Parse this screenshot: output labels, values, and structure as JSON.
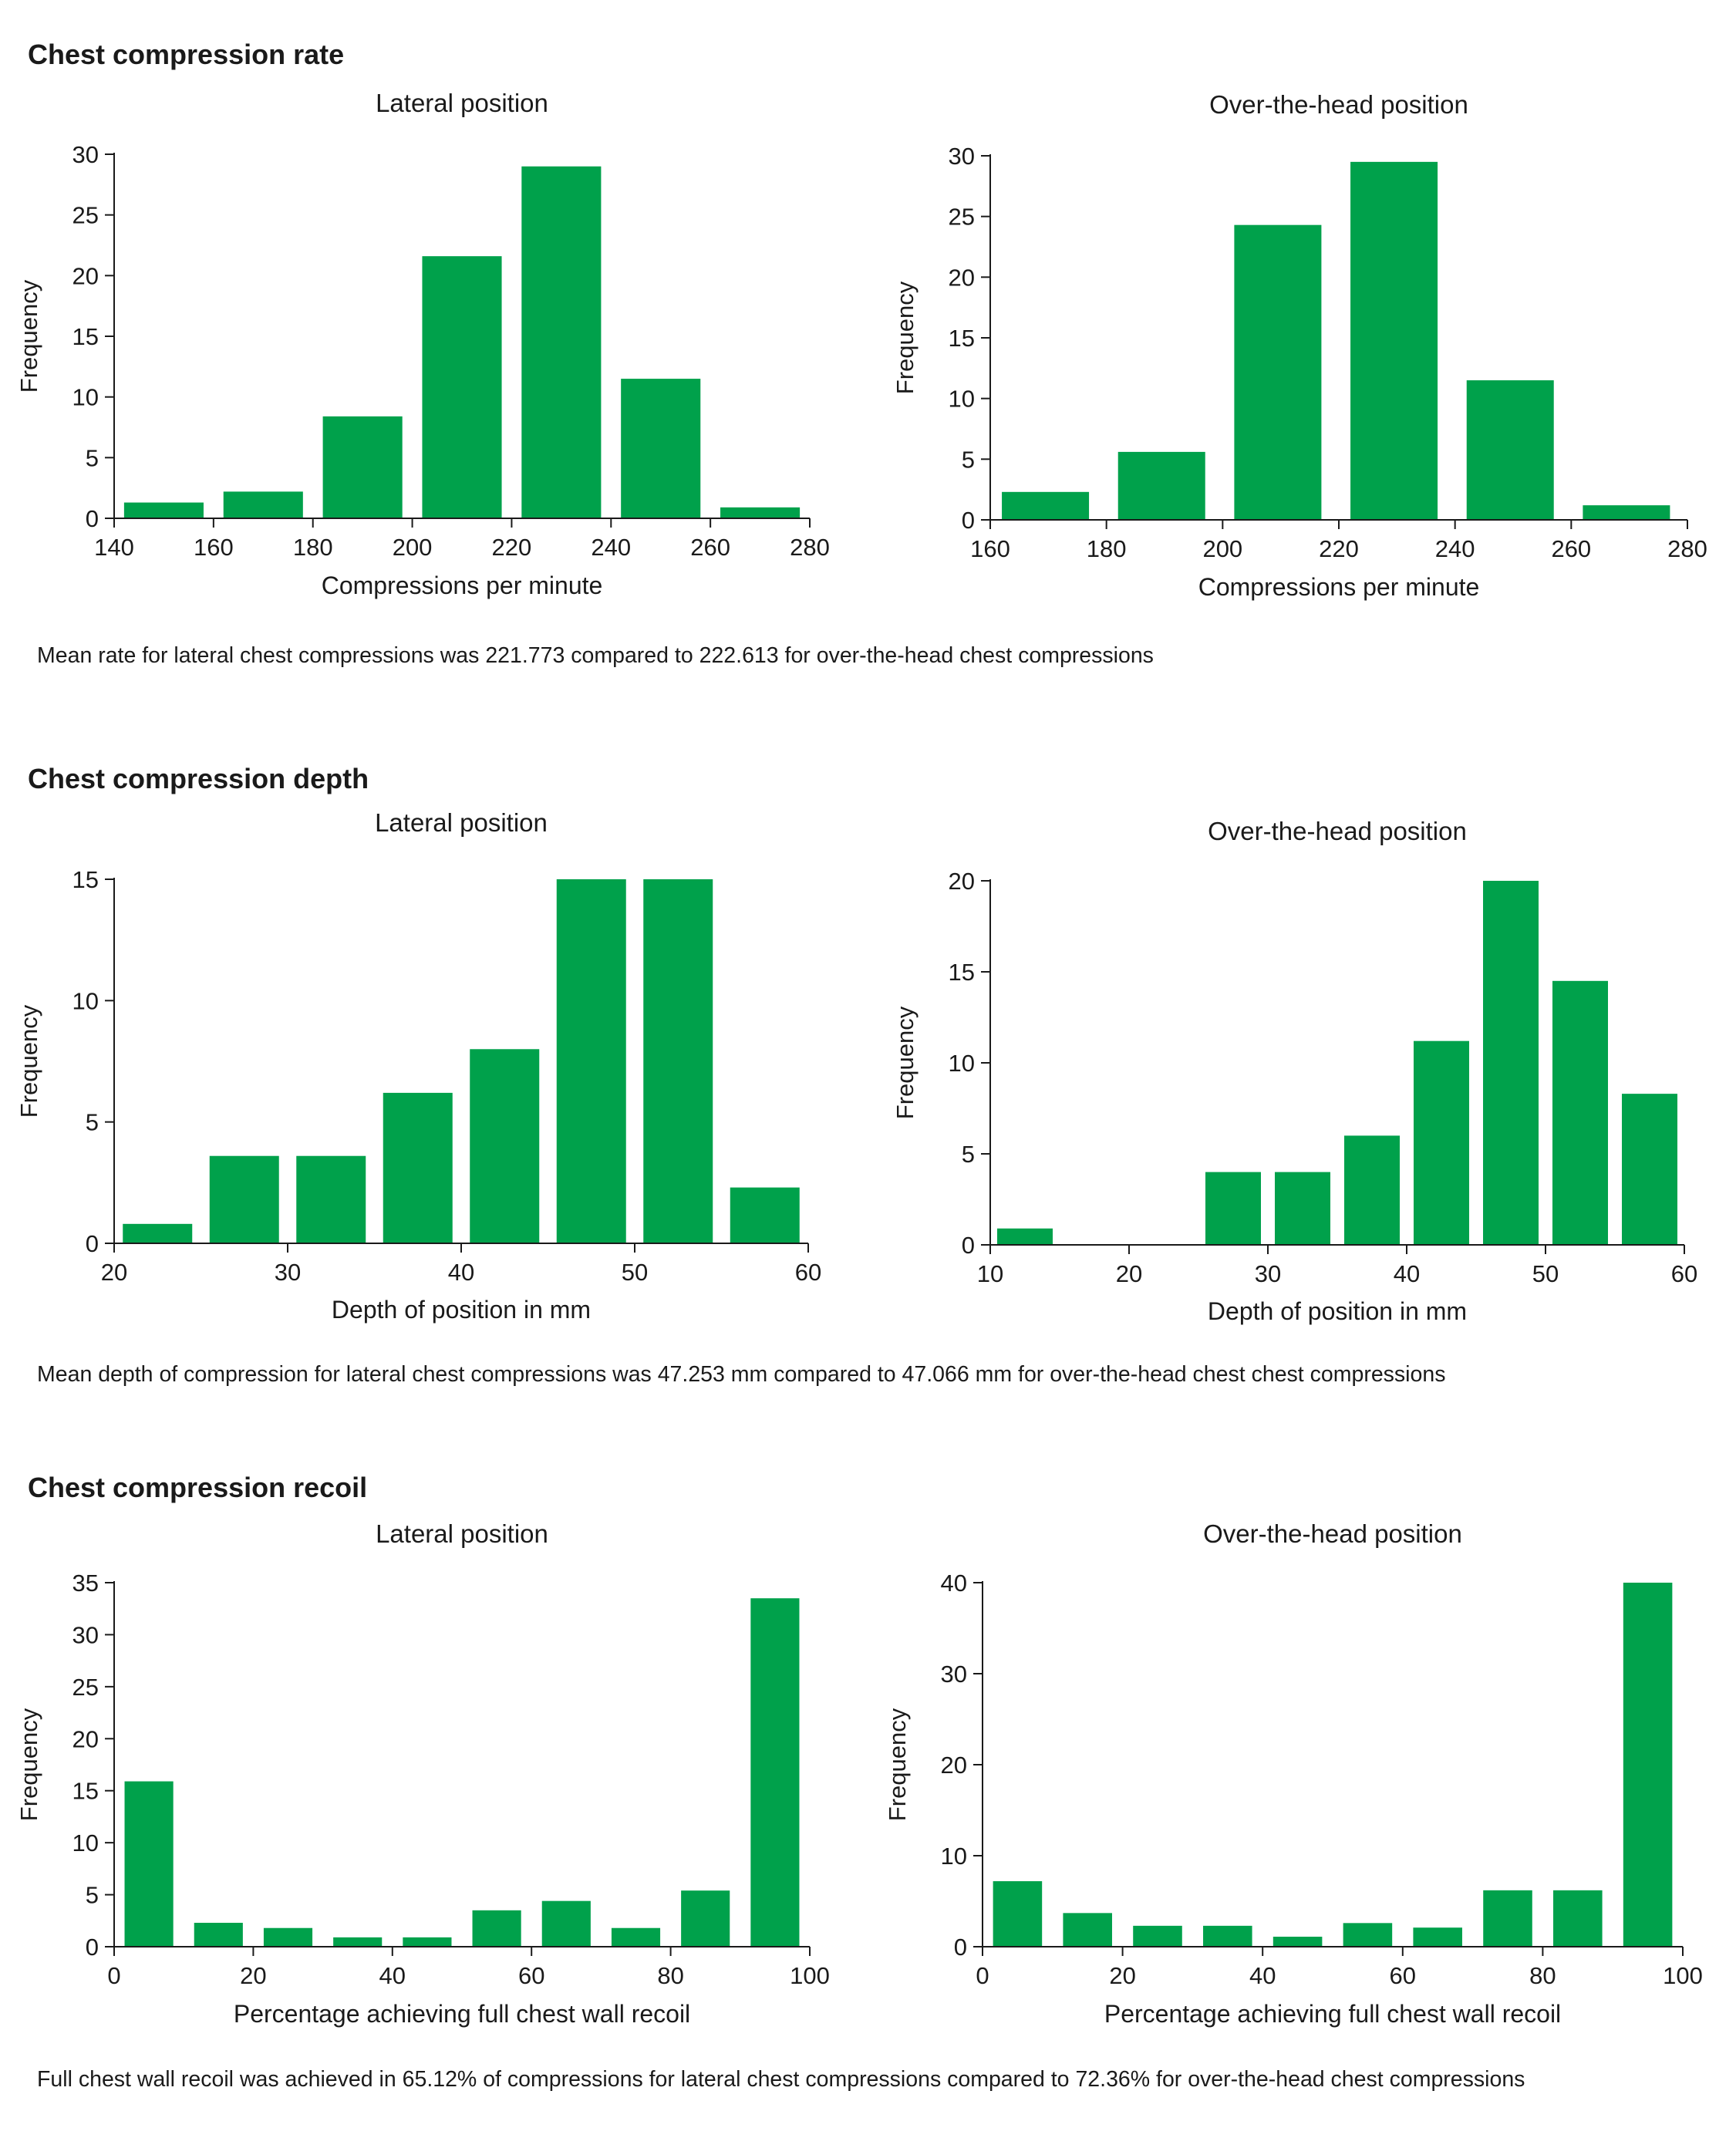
{
  "sections": [
    {
      "title": "Chest compression rate",
      "caption": "Mean rate for lateral chest compressions was 221.773 compared to 222.613 for over-the-head chest compressions"
    },
    {
      "title": "Chest compression depth",
      "caption": "Mean depth of compression for lateral chest compressions was 47.253 mm compared to 47.066 mm for over-the-head chest chest compressions"
    },
    {
      "title": "Chest compression recoil",
      "caption": "Full chest wall recoil was achieved in 65.12% of compressions for lateral chest compressions compared to 72.36% for over-the-head chest compressions"
    }
  ],
  "colors": {
    "bar": "#00a14b",
    "text": "#1a1a1a"
  },
  "chart_data": [
    {
      "type": "bar",
      "title": "Lateral position",
      "xlabel": "Compressions per minute",
      "ylabel": "Frequency",
      "xlim": [
        140,
        280
      ],
      "ylim": [
        0,
        30
      ],
      "xticks": [
        140,
        160,
        180,
        200,
        220,
        240,
        260,
        280
      ],
      "yticks": [
        0,
        5,
        10,
        15,
        20,
        25,
        30
      ],
      "bins": [
        [
          142,
          158
        ],
        [
          162,
          178
        ],
        [
          182,
          198
        ],
        [
          202,
          218
        ],
        [
          222,
          238
        ],
        [
          242,
          258
        ],
        [
          262,
          278
        ]
      ],
      "values": [
        1.3,
        2.2,
        8.4,
        21.6,
        29,
        11.5,
        0.9
      ]
    },
    {
      "type": "bar",
      "title": "Over-the-head position",
      "xlabel": "Compressions per minute",
      "ylabel": "Frequency",
      "xlim": [
        160,
        280
      ],
      "ylim": [
        0,
        30
      ],
      "xticks": [
        160,
        180,
        200,
        220,
        240,
        260,
        280
      ],
      "yticks": [
        0,
        5,
        10,
        15,
        20,
        25,
        30
      ],
      "bins": [
        [
          162,
          177
        ],
        [
          182,
          197
        ],
        [
          202,
          217
        ],
        [
          222,
          237
        ],
        [
          242,
          257
        ],
        [
          262,
          277
        ]
      ],
      "values": [
        2.3,
        5.6,
        24.3,
        29.5,
        11.5,
        1.2
      ]
    },
    {
      "type": "bar",
      "title": "Lateral position",
      "xlabel": "Depth of position in mm",
      "ylabel": "Frequency",
      "xlim": [
        20,
        60
      ],
      "ylim": [
        0,
        15
      ],
      "xticks": [
        20,
        30,
        40,
        50,
        60
      ],
      "yticks": [
        0,
        5,
        10,
        15
      ],
      "bins": [
        [
          20.5,
          24.5
        ],
        [
          25.5,
          29.5
        ],
        [
          30.5,
          34.5
        ],
        [
          35.5,
          39.5
        ],
        [
          40.5,
          44.5
        ],
        [
          45.5,
          49.5
        ],
        [
          50.5,
          54.5
        ],
        [
          55.5,
          59.5
        ]
      ],
      "values": [
        0.8,
        3.6,
        3.6,
        6.2,
        8,
        15,
        15,
        2.3
      ]
    },
    {
      "type": "bar",
      "title": "Over-the-head position",
      "xlabel": "Depth of position in mm",
      "ylabel": "Frequency",
      "xlim": [
        10,
        60
      ],
      "ylim": [
        0,
        20
      ],
      "xticks": [
        10,
        20,
        30,
        40,
        50,
        60
      ],
      "yticks": [
        0,
        5,
        10,
        15,
        20
      ],
      "bins": [
        [
          10.5,
          14.5
        ],
        [
          25.5,
          29.5
        ],
        [
          30.5,
          34.5
        ],
        [
          35.5,
          39.5
        ],
        [
          40.5,
          44.5
        ],
        [
          45.5,
          49.5
        ],
        [
          50.5,
          54.5
        ],
        [
          55.5,
          59.5
        ]
      ],
      "values": [
        0.9,
        4,
        4,
        6,
        11.2,
        20,
        14.5,
        8.3
      ]
    },
    {
      "type": "bar",
      "title": "Lateral position",
      "xlabel": "Percentage achieving full chest wall recoil",
      "ylabel": "Frequency",
      "xlim": [
        0,
        100
      ],
      "ylim": [
        0,
        35
      ],
      "xticks": [
        0,
        20,
        40,
        60,
        80,
        100
      ],
      "yticks": [
        0,
        5,
        10,
        15,
        20,
        25,
        30,
        35
      ],
      "bins": [
        [
          1.5,
          8.5
        ],
        [
          11.5,
          18.5
        ],
        [
          21.5,
          28.5
        ],
        [
          31.5,
          38.5
        ],
        [
          41.5,
          48.5
        ],
        [
          51.5,
          58.5
        ],
        [
          61.5,
          68.5
        ],
        [
          71.5,
          78.5
        ],
        [
          81.5,
          88.5
        ],
        [
          91.5,
          98.5
        ]
      ],
      "values": [
        15.9,
        2.3,
        1.8,
        0.9,
        0.9,
        3.5,
        4.4,
        1.8,
        5.4,
        33.5
      ]
    },
    {
      "type": "bar",
      "title": "Over-the-head position",
      "xlabel": "Percentage achieving full chest wall recoil",
      "ylabel": "Frequency",
      "xlim": [
        0,
        100
      ],
      "ylim": [
        0,
        40
      ],
      "xticks": [
        0,
        20,
        40,
        60,
        80,
        100
      ],
      "yticks": [
        0,
        10,
        20,
        30,
        40
      ],
      "bins": [
        [
          1.5,
          8.5
        ],
        [
          11.5,
          18.5
        ],
        [
          21.5,
          28.5
        ],
        [
          31.5,
          38.5
        ],
        [
          41.5,
          48.5
        ],
        [
          51.5,
          58.5
        ],
        [
          61.5,
          68.5
        ],
        [
          71.5,
          78.5
        ],
        [
          81.5,
          88.5
        ],
        [
          91.5,
          98.5
        ]
      ],
      "values": [
        7.2,
        3.7,
        2.3,
        2.3,
        1.1,
        2.6,
        2.1,
        6.2,
        6.2,
        40
      ]
    }
  ]
}
